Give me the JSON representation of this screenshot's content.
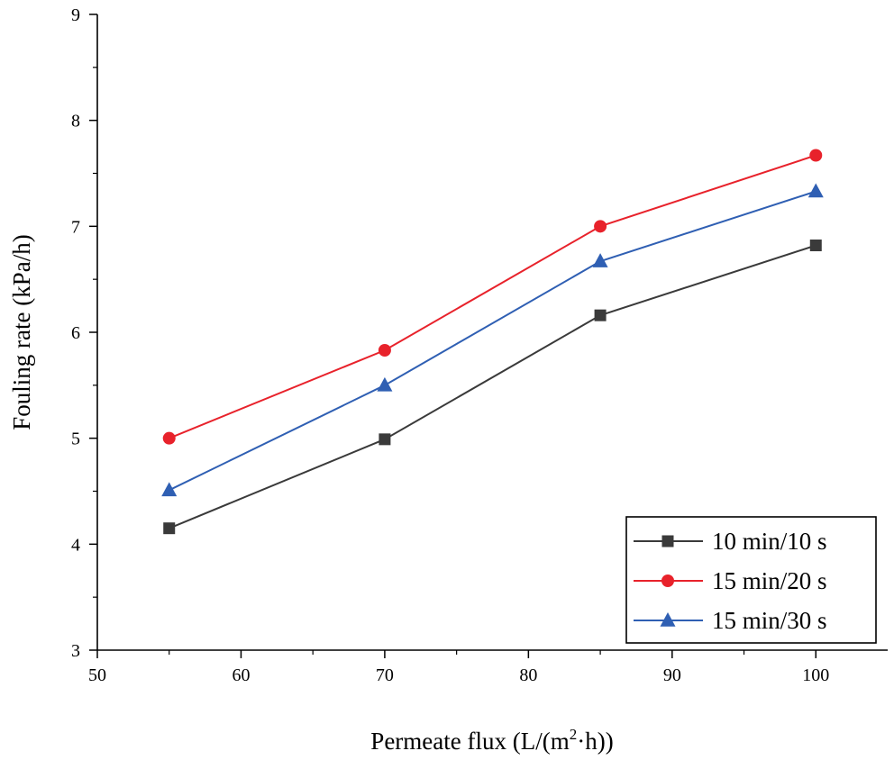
{
  "chart_data": {
    "type": "line",
    "title": "",
    "xlabel": "Permeate flux (L/(m",
    "xlabel_sup": "2",
    "xlabel_tail": "·h))",
    "ylabel": "Fouling rate (kPa/h)",
    "xlim": [
      50,
      105
    ],
    "ylim": [
      3,
      9
    ],
    "xticks": [
      50,
      60,
      70,
      80,
      90,
      100
    ],
    "yticks": [
      3,
      4,
      5,
      6,
      7,
      8,
      9
    ],
    "x": [
      55,
      70,
      85,
      100
    ],
    "series": [
      {
        "name": "10 min/10 s",
        "values": [
          4.15,
          4.99,
          6.16,
          6.82
        ],
        "color": "#3a3a3a",
        "marker": "square"
      },
      {
        "name": "15 min/20 s",
        "values": [
          5.0,
          5.83,
          7.0,
          7.67
        ],
        "color": "#e8222b",
        "marker": "circle"
      },
      {
        "name": "15 min/30 s",
        "values": [
          4.51,
          5.5,
          6.67,
          7.33
        ],
        "color": "#2f5fb3",
        "marker": "triangle"
      }
    ],
    "legend_position": "bottom-right",
    "grid": false
  }
}
